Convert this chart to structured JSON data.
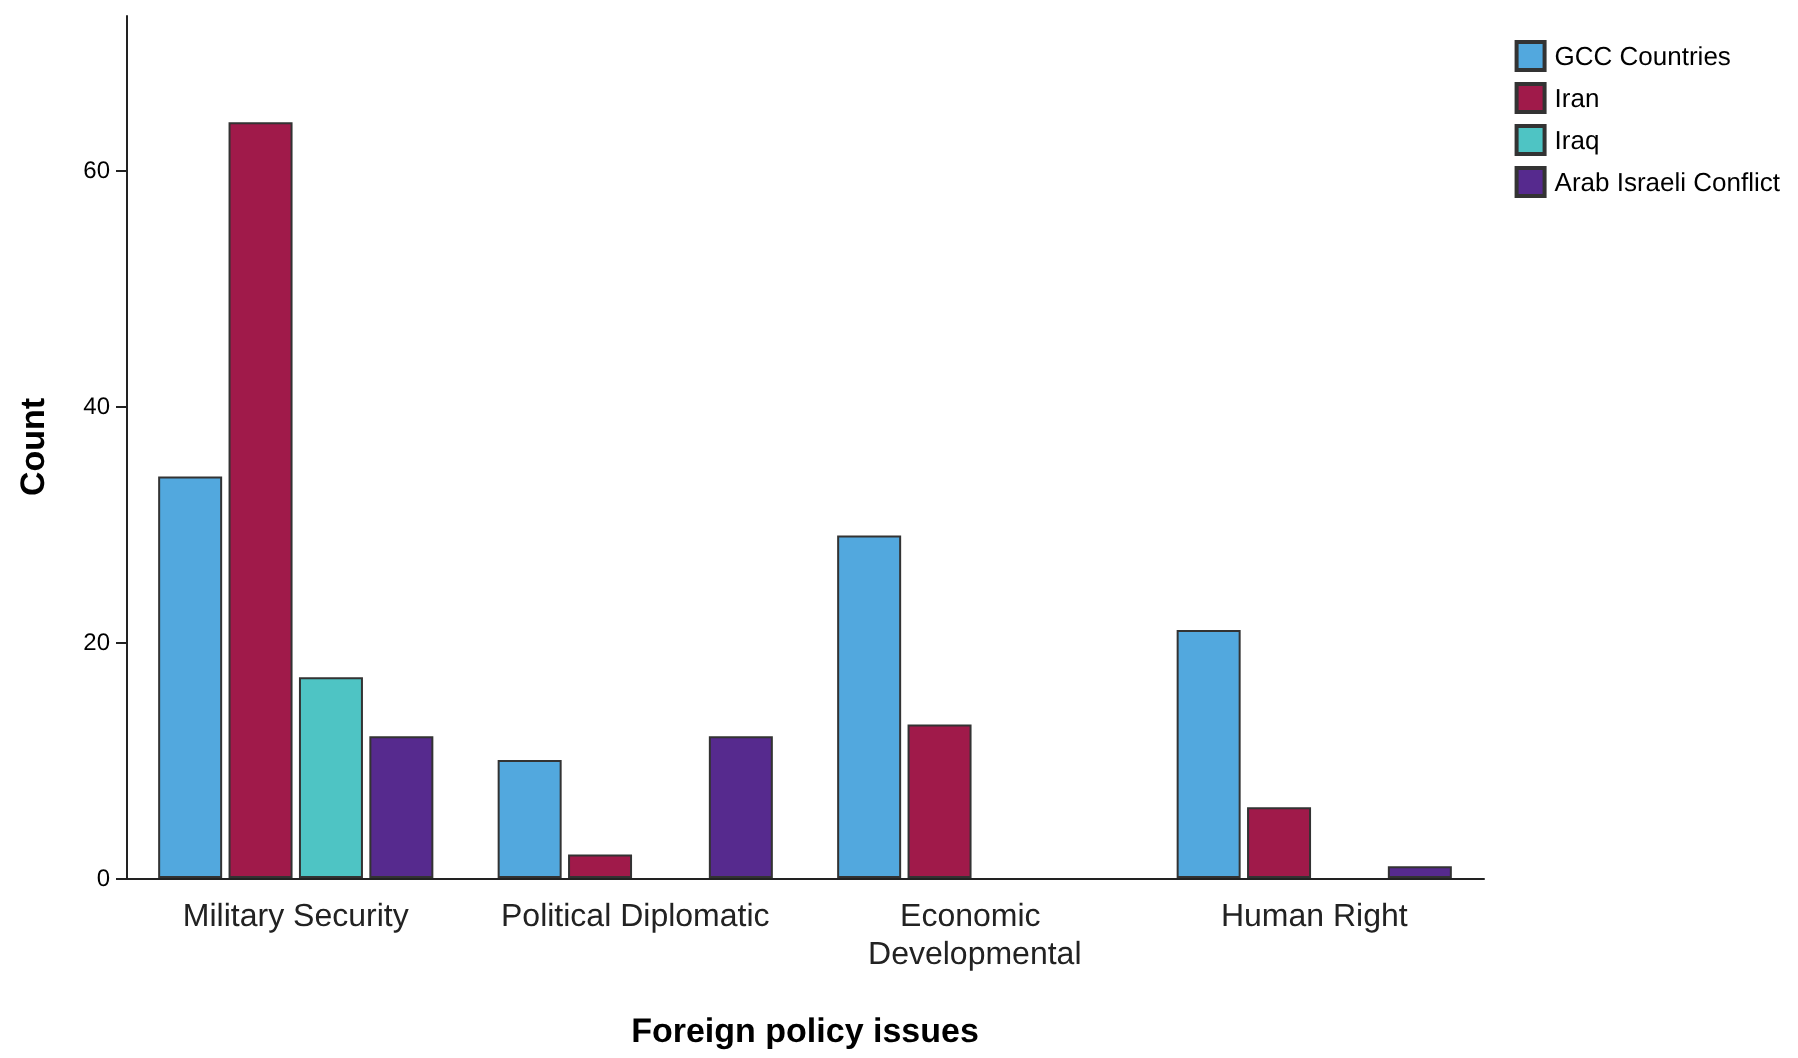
{
  "chart_data": {
    "type": "bar",
    "xlabel": "Foreign policy issues",
    "ylabel": "Count",
    "categories": [
      "Military Security",
      "Political Diplomatic",
      "Economic Developmental",
      "Human Right"
    ],
    "series": [
      {
        "name": "GCC Countries",
        "color": "#52a8de",
        "values": [
          34,
          10,
          29,
          21
        ]
      },
      {
        "name": "Iran",
        "color": "#a01a4a",
        "values": [
          64,
          2,
          13,
          6
        ]
      },
      {
        "name": "Iraq",
        "color": "#4ec4c4",
        "values": [
          17,
          null,
          null,
          null
        ]
      },
      {
        "name": "Arab Israeli Conflict",
        "color": "#562a8e",
        "values": [
          12,
          12,
          null,
          1
        ]
      }
    ],
    "ylim": [
      0,
      73
    ],
    "yticks": [
      0,
      20,
      40,
      60
    ],
    "grid": false,
    "legend": "top right"
  }
}
